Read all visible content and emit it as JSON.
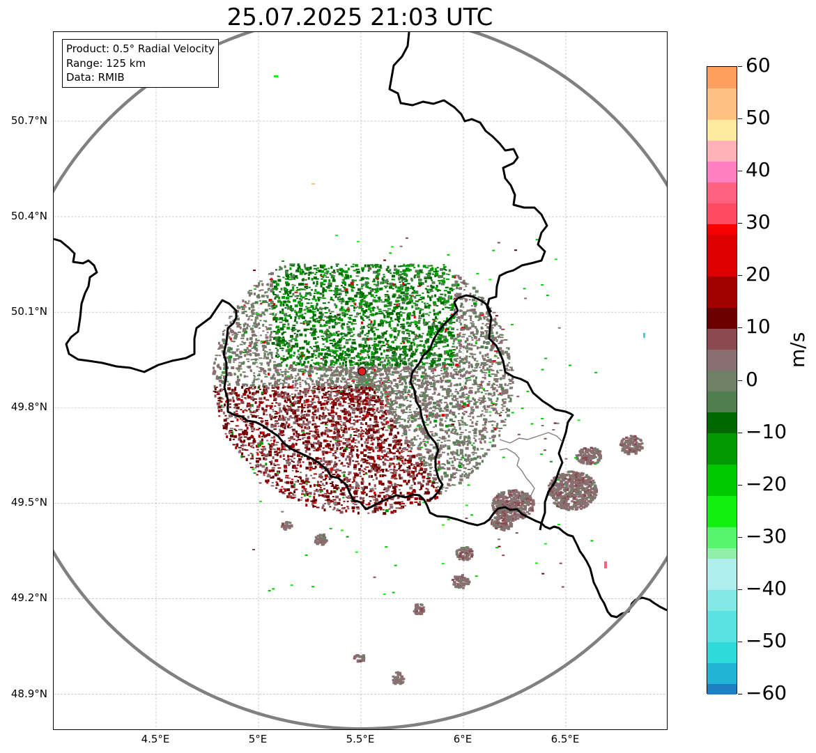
{
  "title": "25.07.2025 21:03 UTC",
  "info_box": {
    "product": "Product: 0.5° Radial Velocity",
    "range": "Range: 125 km",
    "data": "Data: RMIB"
  },
  "axes": {
    "lat_labels": [
      "50.7°N",
      "50.4°N",
      "50.1°N",
      "49.8°N",
      "49.5°N",
      "49.2°N",
      "48.9°N"
    ],
    "lon_labels": [
      "4.5°E",
      "5°E",
      "5.5°E",
      "6°E",
      "6.5°E"
    ],
    "lat_values": [
      50.7,
      50.4,
      50.1,
      49.8,
      49.5,
      49.2,
      48.9
    ],
    "lon_values": [
      4.5,
      5.0,
      5.5,
      6.0,
      6.5
    ],
    "lon_range": [
      4.0,
      7.0
    ],
    "lat_range": [
      48.8,
      51.0
    ]
  },
  "radar": {
    "site_lon": 5.505,
    "site_lat": 49.914,
    "range_km": 125,
    "marker_color": "#e11d1d"
  },
  "colorbar": {
    "unit": "m/s",
    "min": -60,
    "max": 60,
    "tick_values": [
      60,
      50,
      40,
      30,
      20,
      10,
      0,
      -10,
      -20,
      -30,
      -40,
      -50,
      -60
    ],
    "tick_labels": [
      "60",
      "50",
      "40",
      "30",
      "20",
      "10",
      "0",
      "−10",
      "−20",
      "−30",
      "−40",
      "−50",
      "−60"
    ],
    "stops": [
      {
        "from": -60,
        "to": -58,
        "color": "#1f7fc4"
      },
      {
        "from": -58,
        "to": -54,
        "color": "#22b4d4"
      },
      {
        "from": -54,
        "to": -50,
        "color": "#2edada"
      },
      {
        "from": -50,
        "to": -44,
        "color": "#58e2e2"
      },
      {
        "from": -44,
        "to": -40,
        "color": "#82e8e6"
      },
      {
        "from": -40,
        "to": -34,
        "color": "#aeefee"
      },
      {
        "from": -34,
        "to": -32,
        "color": "#90f0a8"
      },
      {
        "from": -32,
        "to": -28,
        "color": "#55f570"
      },
      {
        "from": -28,
        "to": -22,
        "color": "#11f011"
      },
      {
        "from": -22,
        "to": -16,
        "color": "#00c800"
      },
      {
        "from": -16,
        "to": -10,
        "color": "#009a00"
      },
      {
        "from": -10,
        "to": -6,
        "color": "#006800"
      },
      {
        "from": -6,
        "to": -2,
        "color": "#4f7f4f"
      },
      {
        "from": -2,
        "to": 2,
        "color": "#6f8068"
      },
      {
        "from": 2,
        "to": 6,
        "color": "#8a6f72"
      },
      {
        "from": 6,
        "to": 10,
        "color": "#8a4a50"
      },
      {
        "from": 10,
        "to": 14,
        "color": "#6a0000"
      },
      {
        "from": 14,
        "to": 20,
        "color": "#a00000"
      },
      {
        "from": 20,
        "to": 28,
        "color": "#dd0000"
      },
      {
        "from": 28,
        "to": 30,
        "color": "#f80000"
      },
      {
        "from": 30,
        "to": 34,
        "color": "#ff4a60"
      },
      {
        "from": 34,
        "to": 38,
        "color": "#ff6080"
      },
      {
        "from": 38,
        "to": 42,
        "color": "#ff80c0"
      },
      {
        "from": 42,
        "to": 46,
        "color": "#ffb0b8"
      },
      {
        "from": 46,
        "to": 50,
        "color": "#ffe8a0"
      },
      {
        "from": 50,
        "to": 56,
        "color": "#ffc080"
      },
      {
        "from": 56,
        "to": 60,
        "color": "#ffa060"
      }
    ]
  },
  "colors": {
    "range_ring": "#808080",
    "border": "#000000",
    "sub_border": "#808080",
    "grid": "#b0b0b0"
  }
}
